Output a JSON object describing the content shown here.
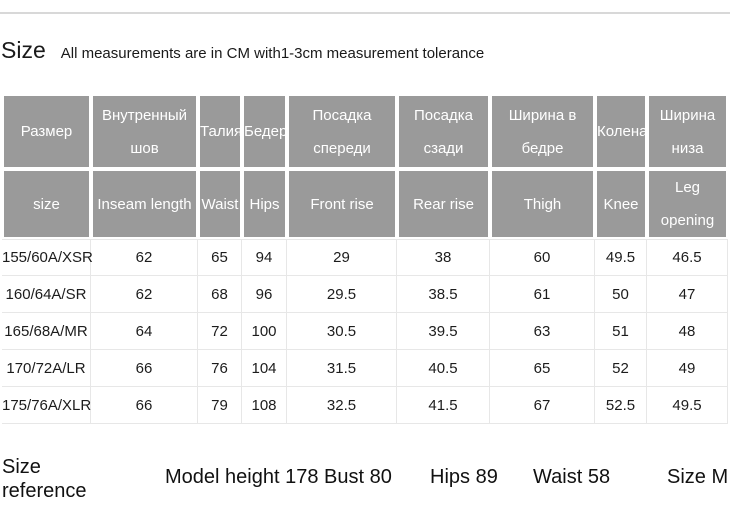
{
  "page": {
    "heading": "Size",
    "subtitle": "All measurements are in CM with1-3cm measurement tolerance"
  },
  "table": {
    "columns": [
      {
        "ru": "Размер",
        "en": "size"
      },
      {
        "ru": "Внутренный шов",
        "en": "Inseam length"
      },
      {
        "ru": "Талия",
        "en": "Waist"
      },
      {
        "ru": "Бедер",
        "en": "Hips"
      },
      {
        "ru": "Посадка спереди",
        "en": "Front rise"
      },
      {
        "ru": "Посадка сзади",
        "en": "Rear rise"
      },
      {
        "ru": "Ширина в бедре",
        "en": "Thigh"
      },
      {
        "ru": "Колена",
        "en": "Knee"
      },
      {
        "ru": "Ширина низа",
        "en": "Leg opening"
      }
    ],
    "rows": [
      [
        "155/60A/XSR",
        "62",
        "65",
        "94",
        "29",
        "38",
        "60",
        "49.5",
        "46.5"
      ],
      [
        "160/64A/SR",
        "62",
        "68",
        "96",
        "29.5",
        "38.5",
        "61",
        "50",
        "47"
      ],
      [
        "165/68A/MR",
        "64",
        "72",
        "100",
        "30.5",
        "39.5",
        "63",
        "51",
        "48"
      ],
      [
        "170/72A/LR",
        "66",
        "76",
        "104",
        "31.5",
        "40.5",
        "65",
        "52",
        "49"
      ],
      [
        "175/76A/XLR",
        "66",
        "79",
        "108",
        "32.5",
        "41.5",
        "67",
        "52.5",
        "49.5"
      ]
    ]
  },
  "footer": {
    "label": "Size reference",
    "items": [
      "Model height 178 Bust 80",
      "Hips 89",
      "Waist 58",
      "Size M"
    ]
  },
  "colors": {
    "header_bg": "#9a9a9a",
    "header_text": "#ffffff",
    "grid_line": "#e7e7e7",
    "divider": "#d8d8d8",
    "text": "#1c1c1c"
  }
}
